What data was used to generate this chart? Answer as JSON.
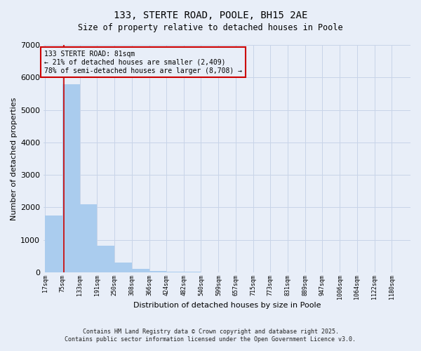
{
  "title_line1": "133, STERTE ROAD, POOLE, BH15 2AE",
  "title_line2": "Size of property relative to detached houses in Poole",
  "xlabel": "Distribution of detached houses by size in Poole",
  "ylabel": "Number of detached properties",
  "bins": [
    17,
    75,
    133,
    191,
    250,
    308,
    366,
    424,
    482,
    540,
    599,
    657,
    715,
    773,
    831,
    889,
    947,
    1006,
    1064,
    1122,
    1180
  ],
  "bar_heights": [
    1750,
    5800,
    2100,
    830,
    310,
    115,
    55,
    25,
    15,
    8,
    5,
    4,
    3,
    2,
    1,
    1,
    1,
    0,
    0,
    0,
    0
  ],
  "bar_color": "#aaccee",
  "grid_color": "#c8d4e8",
  "bg_color": "#e8eef8",
  "property_size": 81,
  "vline_color": "#cc0000",
  "annotation_line1": "133 STERTE ROAD: 81sqm",
  "annotation_line2": "← 21% of detached houses are smaller (2,409)",
  "annotation_line3": "78% of semi-detached houses are larger (8,708) →",
  "annotation_box_color": "#cc0000",
  "ylim": [
    0,
    7000
  ],
  "yticks": [
    0,
    1000,
    2000,
    3000,
    4000,
    5000,
    6000,
    7000
  ],
  "footnote1": "Contains HM Land Registry data © Crown copyright and database right 2025.",
  "footnote2": "Contains public sector information licensed under the Open Government Licence v3.0."
}
